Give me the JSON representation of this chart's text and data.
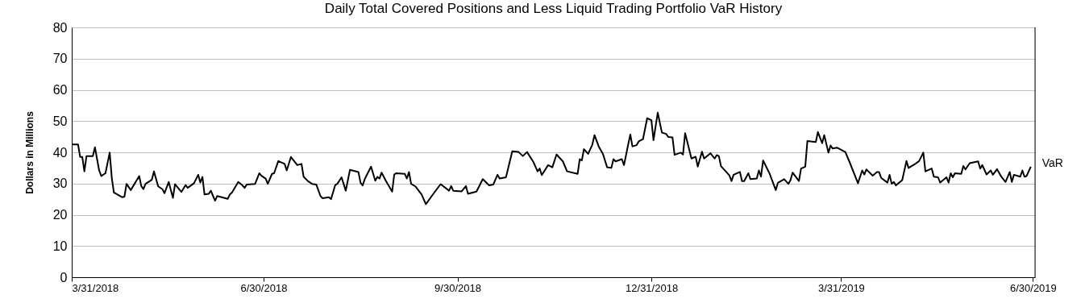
{
  "chart_data": {
    "type": "line",
    "title": "Daily Total Covered Positions and Less Liquid Trading Portfolio VaR History",
    "ylabel": "Dollars in Millions",
    "x": [
      "2018-03-31",
      "2018-04-03",
      "2018-04-04",
      "2018-04-05",
      "2018-04-06",
      "2018-04-07",
      "2018-04-10",
      "2018-04-11",
      "2018-04-13",
      "2018-04-14",
      "2018-04-16",
      "2018-04-18",
      "2018-04-19",
      "2018-04-20",
      "2018-04-24",
      "2018-04-25",
      "2018-04-26",
      "2018-04-28",
      "2018-05-02",
      "2018-05-03",
      "2018-05-04",
      "2018-05-05",
      "2018-05-08",
      "2018-05-09",
      "2018-05-11",
      "2018-05-13",
      "2018-05-14",
      "2018-05-16",
      "2018-05-18",
      "2018-05-19",
      "2018-05-22",
      "2018-05-24",
      "2018-05-25",
      "2018-05-28",
      "2018-05-30",
      "2018-05-31",
      "2018-06-01",
      "2018-06-02",
      "2018-06-04",
      "2018-06-05",
      "2018-06-07",
      "2018-06-08",
      "2018-06-13",
      "2018-06-14",
      "2018-06-15",
      "2018-06-18",
      "2018-06-20",
      "2018-06-21",
      "2018-06-22",
      "2018-06-26",
      "2018-06-28",
      "2018-06-29",
      "2018-07-01",
      "2018-07-02",
      "2018-07-04",
      "2018-07-05",
      "2018-07-07",
      "2018-07-10",
      "2018-07-11",
      "2018-07-13",
      "2018-07-16",
      "2018-07-18",
      "2018-07-19",
      "2018-07-21",
      "2018-07-23",
      "2018-07-25",
      "2018-07-27",
      "2018-07-28",
      "2018-07-31",
      "2018-08-01",
      "2018-08-03",
      "2018-08-04",
      "2018-08-06",
      "2018-08-08",
      "2018-08-10",
      "2018-08-14",
      "2018-08-15",
      "2018-08-16",
      "2018-08-17",
      "2018-08-20",
      "2018-08-22",
      "2018-08-23",
      "2018-08-24",
      "2018-08-25",
      "2018-08-27",
      "2018-08-30",
      "2018-08-31",
      "2018-09-01",
      "2018-09-05",
      "2018-09-06",
      "2018-09-07",
      "2018-09-08",
      "2018-09-10",
      "2018-09-13",
      "2018-09-15",
      "2018-09-18",
      "2018-09-22",
      "2018-09-26",
      "2018-09-27",
      "2018-09-28",
      "2018-10-02",
      "2018-10-04",
      "2018-10-05",
      "2018-10-09",
      "2018-10-12",
      "2018-10-15",
      "2018-10-17",
      "2018-10-19",
      "2018-10-20",
      "2018-10-23",
      "2018-10-26",
      "2018-10-29",
      "2018-10-31",
      "2018-11-02",
      "2018-11-05",
      "2018-11-07",
      "2018-11-08",
      "2018-11-09",
      "2018-11-12",
      "2018-11-14",
      "2018-11-16",
      "2018-11-19",
      "2018-11-21",
      "2018-11-26",
      "2018-11-27",
      "2018-11-28",
      "2018-11-29",
      "2018-12-01",
      "2018-12-03",
      "2018-12-04",
      "2018-12-06",
      "2018-12-08",
      "2018-12-10",
      "2018-12-12",
      "2018-12-13",
      "2018-12-14",
      "2018-12-17",
      "2018-12-18",
      "2018-12-20",
      "2018-12-21",
      "2018-12-22",
      "2018-12-24",
      "2018-12-25",
      "2018-12-27",
      "2018-12-29",
      "2018-12-31",
      "2019-01-01",
      "2019-01-03",
      "2019-01-05",
      "2019-01-07",
      "2019-01-08",
      "2019-01-10",
      "2019-01-11",
      "2019-01-14",
      "2019-01-15",
      "2019-01-16",
      "2019-01-19",
      "2019-01-21",
      "2019-01-22",
      "2019-01-24",
      "2019-01-25",
      "2019-01-28",
      "2019-01-30",
      "2019-01-31",
      "2019-02-01",
      "2019-02-02",
      "2019-02-06",
      "2019-02-07",
      "2019-02-08",
      "2019-02-11",
      "2019-02-12",
      "2019-02-13",
      "2019-02-15",
      "2019-02-16",
      "2019-02-19",
      "2019-02-20",
      "2019-02-21",
      "2019-02-22",
      "2019-02-25",
      "2019-02-28",
      "2019-03-01",
      "2019-03-04",
      "2019-03-06",
      "2019-03-07",
      "2019-03-08",
      "2019-03-11",
      "2019-03-12",
      "2019-03-14",
      "2019-03-15",
      "2019-03-19",
      "2019-03-20",
      "2019-03-22",
      "2019-03-23",
      "2019-03-25",
      "2019-03-26",
      "2019-03-27",
      "2019-03-29",
      "2019-04-02",
      "2019-04-04",
      "2019-04-08",
      "2019-04-10",
      "2019-04-11",
      "2019-04-12",
      "2019-04-15",
      "2019-04-17",
      "2019-04-18",
      "2019-04-19",
      "2019-04-22",
      "2019-04-23",
      "2019-04-24",
      "2019-04-25",
      "2019-04-26",
      "2019-04-29",
      "2019-05-01",
      "2019-05-02",
      "2019-05-05",
      "2019-05-07",
      "2019-05-09",
      "2019-05-10",
      "2019-05-13",
      "2019-05-14",
      "2019-05-16",
      "2019-05-17",
      "2019-05-20",
      "2019-05-21",
      "2019-05-22",
      "2019-05-23",
      "2019-05-24",
      "2019-05-27",
      "2019-05-28",
      "2019-05-29",
      "2019-05-31",
      "2019-06-04",
      "2019-06-05",
      "2019-06-06",
      "2019-06-08",
      "2019-06-10",
      "2019-06-11",
      "2019-06-13",
      "2019-06-15",
      "2019-06-17",
      "2019-06-19",
      "2019-06-20",
      "2019-06-21",
      "2019-06-24",
      "2019-06-25",
      "2019-06-26",
      "2019-06-27",
      "2019-06-29"
    ],
    "series": [
      {
        "name": "VaR",
        "color": "#000000",
        "values": [
          42.5,
          42.5,
          38.5,
          38.5,
          33.9,
          38.8,
          38.8,
          41.6,
          34.2,
          32.4,
          33.3,
          39.9,
          31.8,
          27.1,
          25.6,
          25.8,
          29.9,
          27.9,
          32.4,
          29.2,
          28.2,
          29.9,
          31.2,
          33.9,
          29.1,
          28.2,
          26.9,
          30.5,
          25.4,
          29.8,
          27.3,
          29.5,
          28.6,
          30.1,
          32.8,
          30.3,
          32.1,
          26.5,
          26.7,
          27.7,
          24.5,
          26.0,
          25.1,
          26.5,
          27.1,
          30.5,
          29.4,
          28.6,
          29.7,
          29.9,
          33.3,
          32.5,
          31.6,
          29.9,
          33.1,
          33.3,
          37.2,
          36.3,
          34.2,
          38.5,
          35.9,
          36.3,
          32.2,
          30.8,
          29.9,
          29.7,
          26.0,
          25.3,
          25.6,
          25.0,
          29.5,
          29.9,
          32.0,
          27.7,
          34.4,
          33.7,
          30.3,
          29.4,
          31.4,
          35.4,
          30.9,
          32.1,
          31.6,
          33.5,
          30.9,
          27.4,
          32.9,
          33.3,
          33.1,
          31.6,
          33.7,
          29.9,
          29.1,
          26.5,
          23.4,
          26.2,
          29.8,
          27.7,
          29.2,
          27.7,
          27.5,
          29.2,
          26.7,
          27.4,
          31.4,
          29.4,
          29.7,
          32.8,
          31.6,
          32.0,
          40.3,
          40.1,
          38.8,
          40.1,
          36.9,
          33.9,
          34.8,
          32.7,
          35.9,
          35.2,
          39.3,
          37.1,
          33.9,
          33.1,
          37.8,
          37.4,
          41.0,
          39.5,
          42.5,
          45.5,
          41.9,
          39.5,
          35.2,
          35.0,
          37.8,
          37.1,
          37.8,
          35.9,
          42.5,
          45.7,
          41.9,
          42.3,
          43.5,
          44.2,
          50.9,
          50.3,
          43.9,
          52.7,
          46.3,
          45.9,
          44.9,
          44.8,
          39.2,
          39.9,
          39.3,
          46.1,
          38.0,
          38.6,
          35.4,
          40.2,
          38.0,
          39.7,
          38.0,
          39.1,
          38.8,
          35.6,
          32.6,
          30.8,
          32.8,
          33.7,
          30.8,
          30.8,
          33.3,
          31.4,
          31.6,
          34.2,
          32.2,
          37.4,
          33.3,
          27.9,
          30.2,
          31.4,
          29.9,
          31.1,
          33.5,
          30.8,
          34.8,
          35.4,
          43.6,
          43.3,
          46.5,
          42.9,
          45.5,
          39.9,
          42.2,
          41.2,
          41.5,
          40.1,
          36.9,
          30.1,
          34.2,
          32.9,
          34.5,
          32.5,
          33.7,
          33.7,
          31.8,
          30.3,
          32.8,
          29.9,
          30.5,
          29.4,
          31.1,
          37.2,
          35.0,
          36.2,
          37.2,
          39.9,
          33.9,
          34.8,
          32.2,
          32.0,
          30.3,
          32.0,
          30.3,
          33.3,
          32.0,
          33.3,
          33.1,
          35.6,
          34.5,
          36.5,
          37.1,
          34.8,
          35.9,
          32.9,
          34.2,
          32.8,
          34.6,
          32.2,
          30.5,
          33.7,
          30.5,
          32.8,
          32.2,
          34.2,
          32.2,
          32.4,
          35.4
        ]
      }
    ],
    "xlim": [
      "2018-03-31",
      "2019-07-01"
    ],
    "xticks": [
      {
        "value": "2018-03-31",
        "label": "3/31/2018"
      },
      {
        "value": "2018-06-30",
        "label": "6/30/2018"
      },
      {
        "value": "2018-09-30",
        "label": "9/30/2018"
      },
      {
        "value": "2018-12-31",
        "label": "12/31/2018"
      },
      {
        "value": "2019-03-31",
        "label": "3/31/2019"
      },
      {
        "value": "2019-06-30",
        "label": "6/30/2019"
      }
    ],
    "ylim": [
      0,
      80
    ],
    "yticks": [
      0,
      10,
      20,
      30,
      40,
      50,
      60,
      70,
      80
    ],
    "grid": "y"
  }
}
